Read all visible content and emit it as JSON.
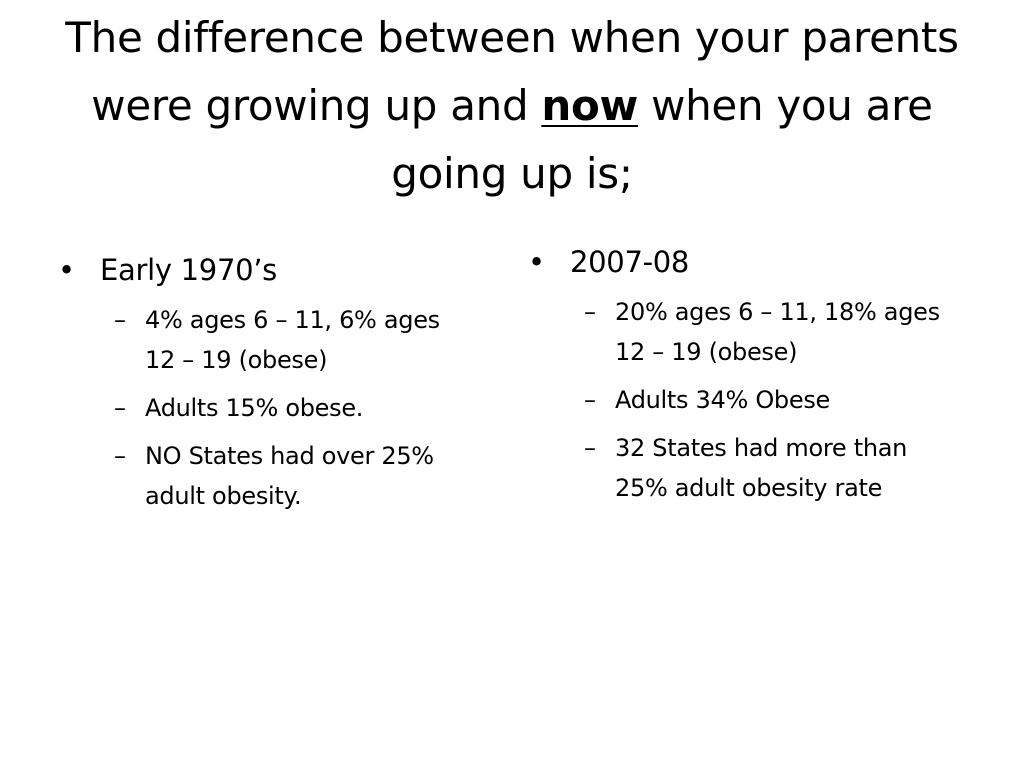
{
  "slide": {
    "title": {
      "before": "The difference between when your parents were growing up and ",
      "emphasis": "now",
      "after": " when you are going up is;"
    },
    "left_column": {
      "heading": "Early 1970’s",
      "items": [
        "4% ages 6 – 11, 6% ages 12 – 19 (obese)",
        "Adults 15% obese.",
        "NO States had over 25% adult obesity."
      ]
    },
    "right_column": {
      "heading": "2007-08",
      "items": [
        "20% ages 6 – 11, 18% ages 12 – 19 (obese)",
        "Adults 34% Obese",
        "32 States had more than 25% adult obesity rate"
      ]
    }
  }
}
